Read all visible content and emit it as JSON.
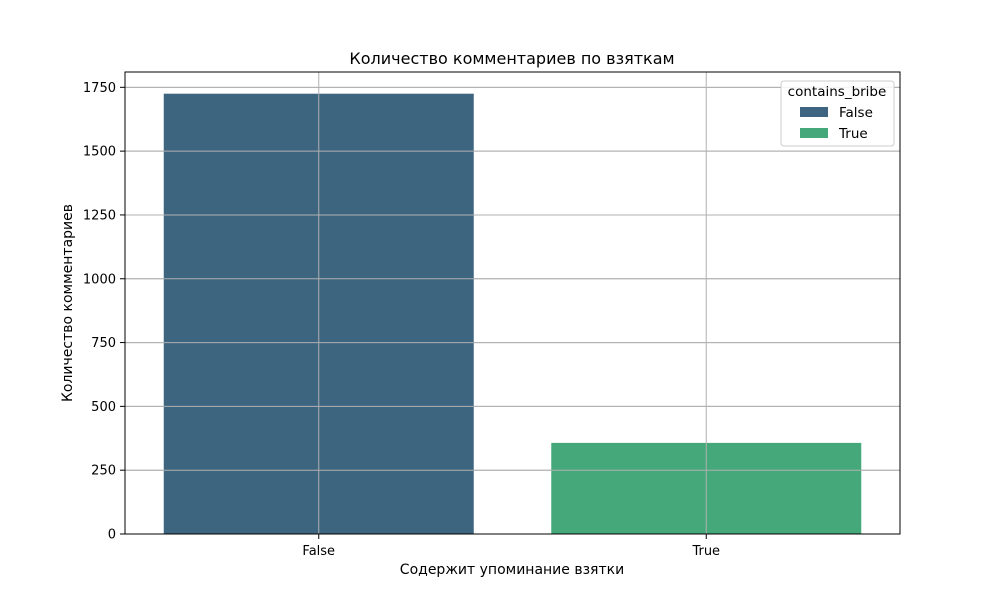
{
  "chart_data": {
    "type": "bar",
    "title": "Количество комментариев по взяткам",
    "xlabel": "Содержит упоминание взятки",
    "ylabel": "Количество комментариев",
    "categories": [
      "False",
      "True"
    ],
    "values": [
      1725,
      357
    ],
    "colors": [
      "#3e6580",
      "#45a87a"
    ],
    "ylim": [
      0,
      1810
    ],
    "yticks": [
      0,
      250,
      500,
      750,
      1000,
      1250,
      1500,
      1750
    ],
    "grid": true,
    "legend": {
      "title": "contains_bribe",
      "placement": "top-right",
      "entries": [
        "False",
        "True"
      ]
    }
  }
}
